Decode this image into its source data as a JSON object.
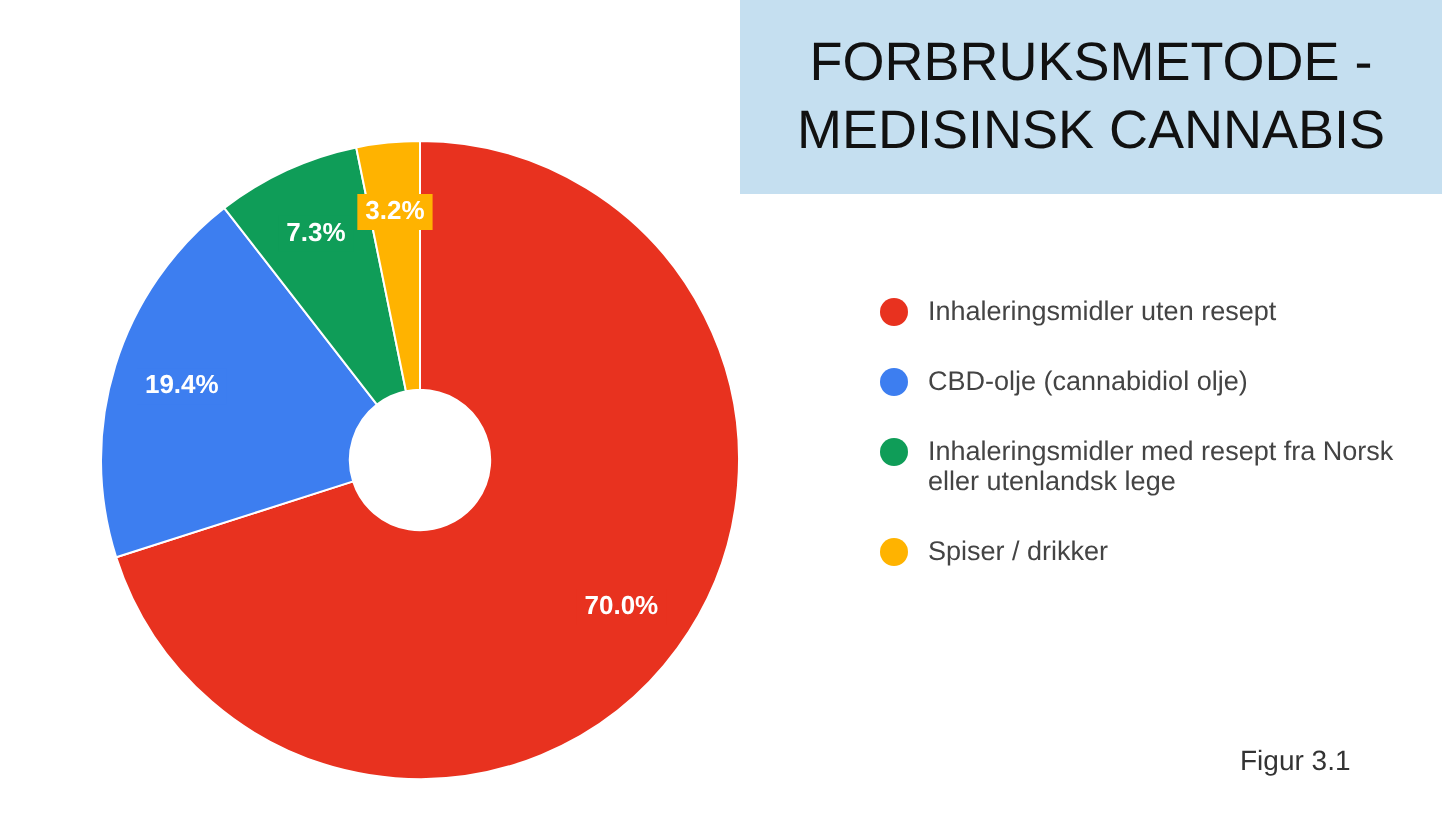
{
  "chart_data": {
    "type": "donut",
    "title": "FORBRUKSMETODE - MEDISINSK CANNABIS",
    "categories": [
      "Inhaleringsmidler uten resept",
      "CBD-olje (cannabidiol olje)",
      "Inhaleringsmidler med resept fra Norsk eller utenlandsk lege",
      "Spiser / drikker"
    ],
    "values": [
      70.0,
      19.4,
      7.3,
      3.2
    ],
    "colors": [
      "#e8321f",
      "#3d7ef0",
      "#0f9d58",
      "#ffb300"
    ],
    "value_labels": [
      "70.0%",
      "19.4%",
      "7.3%",
      "3.2%"
    ],
    "legend": "right",
    "annotations": [
      "Figur 3.1"
    ]
  }
}
